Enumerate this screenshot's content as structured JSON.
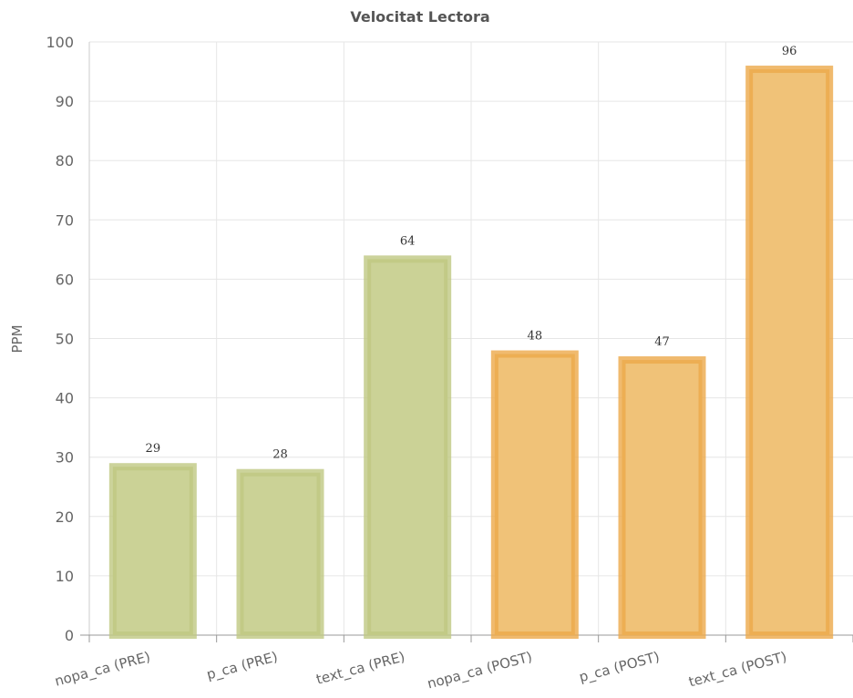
{
  "chart_data": {
    "type": "bar",
    "title": "Velocitat Lectora",
    "xlabel": "",
    "ylabel": "PPM",
    "categories": [
      "nopa_ca (PRE)",
      "p_ca (PRE)",
      "text_ca (PRE)",
      "nopa_ca (POST)",
      "p_ca (POST)",
      "text_ca (POST)"
    ],
    "values": [
      29,
      28,
      64,
      48,
      47,
      96
    ],
    "data_labels": [
      "29",
      "28",
      "64",
      "48",
      "47",
      "96"
    ],
    "ylim": [
      0,
      100
    ],
    "yticks": [
      "0",
      "10",
      "20",
      "30",
      "40",
      "50",
      "60",
      "70",
      "80",
      "90",
      "100"
    ],
    "grid": true,
    "legend": "none",
    "bar_colors": [
      "#cbd296",
      "#cbd296",
      "#cbd296",
      "#f0c278",
      "#f0c278",
      "#f0c278"
    ],
    "bar_border_colors": [
      "#bfc882",
      "#bfc882",
      "#bfc882",
      "#eca94a",
      "#eca94a",
      "#eca94a"
    ]
  }
}
